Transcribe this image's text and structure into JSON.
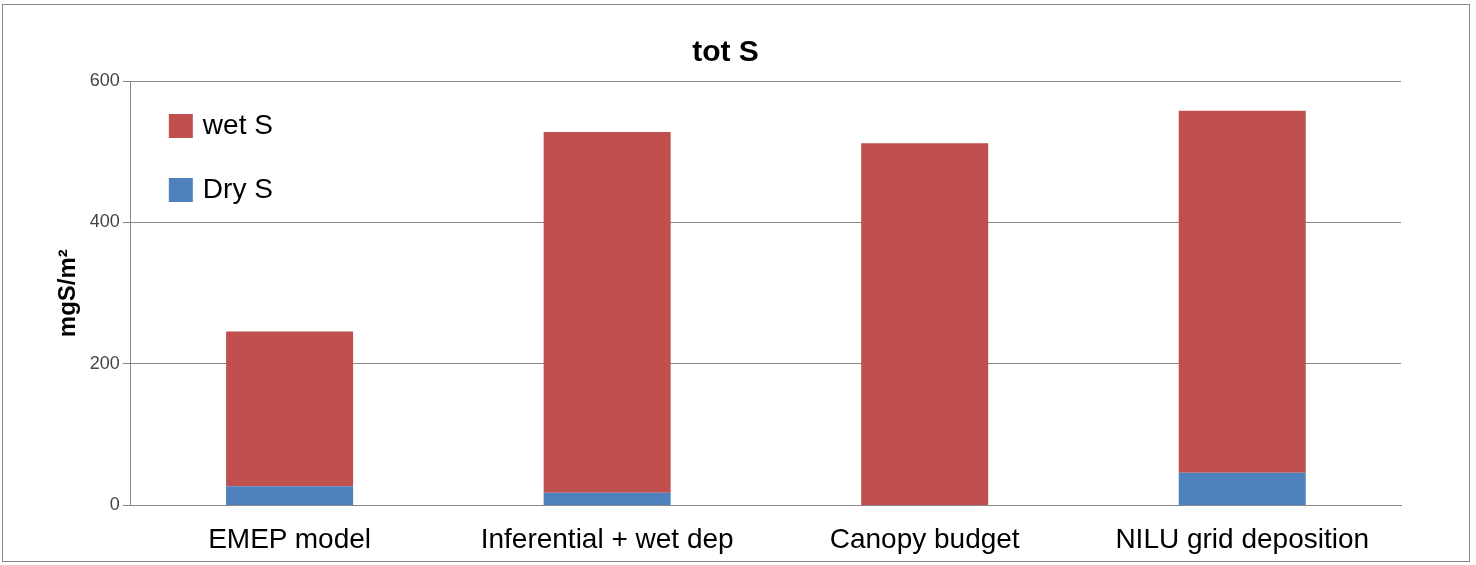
{
  "chart_data": {
    "type": "bar",
    "title": "tot S",
    "ylabel": "mgS/m²",
    "categories": [
      "EMEP model",
      "Inferential + wet dep",
      "Canopy budget",
      "NILU grid deposition"
    ],
    "series": [
      {
        "name": "Dry S",
        "color": "#4f81bd",
        "values": [
          27,
          18,
          0,
          46
        ]
      },
      {
        "name": "wet S",
        "color": "#c0504d",
        "values": [
          219,
          510,
          512,
          512
        ]
      }
    ],
    "stacked": true,
    "ylim": [
      0,
      600
    ],
    "yticks": [
      0,
      200,
      400,
      600
    ],
    "grid": "y",
    "legend": "top left"
  }
}
